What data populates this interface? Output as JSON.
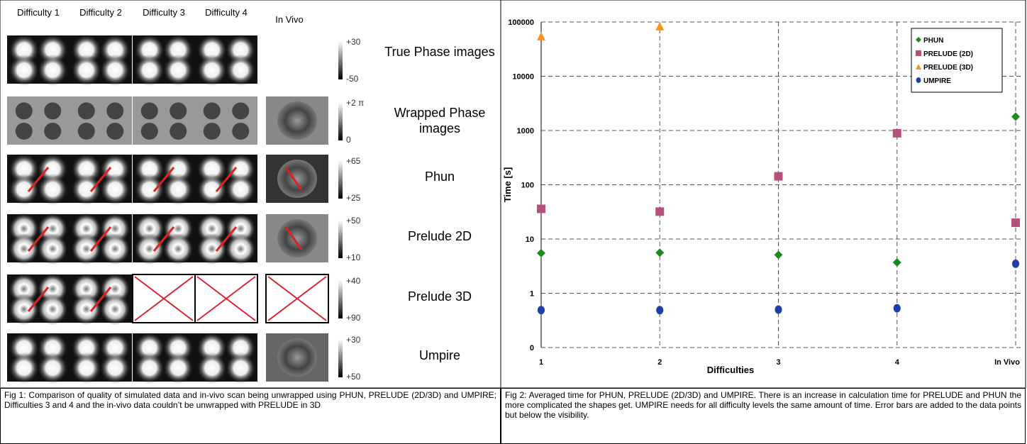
{
  "figure1": {
    "columns": [
      "Difficulty 1",
      "Difficulty 2",
      "Difficulty 3",
      "Difficulty 4",
      "In Vivo"
    ],
    "rows": [
      {
        "label": "True Phase images",
        "scale_top": "+30",
        "scale_bottom": "-50"
      },
      {
        "label": "Wrapped Phase images",
        "scale_top": "+2 π",
        "scale_bottom": "0"
      },
      {
        "label": "Phun",
        "scale_top": "+65",
        "scale_bottom": "+25"
      },
      {
        "label": "Prelude 2D",
        "scale_top": "+50",
        "scale_bottom": "+10"
      },
      {
        "label": "Prelude 3D",
        "scale_top": "+40",
        "scale_bottom": "+90"
      },
      {
        "label": "Umpire",
        "scale_top": "+30",
        "scale_bottom": "+50"
      }
    ],
    "caption": "Fig 1: Comparison of quality of simulated data and in-vivo scan being unwrapped using PHUN, PRELUDE (2D/3D) and UMPIRE; Difficulties 3 and 4 and the in-vivo data couldn’t be unwrapped with PRELUDE in 3D"
  },
  "chart_data": {
    "type": "scatter",
    "xlabel": "Difficulties",
    "ylabel": "Time [s]",
    "categories": [
      "1",
      "2",
      "3",
      "4",
      "In Vivo"
    ],
    "log_scale": true,
    "ylim": [
      0.1,
      100000
    ],
    "yticks": [
      {
        "value": 0.1,
        "label": "0"
      },
      1,
      10,
      100,
      1000,
      10000,
      100000
    ],
    "grid": true,
    "legend": "upper right",
    "series": [
      {
        "name": "PHUN",
        "color": "#1e8a1e",
        "marker": "diamond",
        "values": [
          5.5,
          5.6,
          5.1,
          3.7,
          1800
        ]
      },
      {
        "name": "PRELUDE (2D)",
        "color": "#b5507e",
        "marker": "square",
        "values": [
          36,
          32,
          143,
          890,
          20
        ]
      },
      {
        "name": "PRELUDE (3D)",
        "color": "#f7941d",
        "marker": "triangle",
        "values": [
          55000,
          84000,
          null,
          null,
          null
        ]
      },
      {
        "name": "UMPIRE",
        "color": "#1f3fa8",
        "marker": "circle",
        "values": [
          0.49,
          0.49,
          0.5,
          0.53,
          3.5
        ]
      }
    ],
    "caption": "Fig 2: Averaged time for PHUN, PRELUDE (2D/3D) and UMPIRE. There is an increase in calculation time for PRELUDE and PHUN the more complicated the shapes get. UMPIRE needs for all difficulty levels the same amount of time. Error bars are added to the data points but below the visibility."
  }
}
